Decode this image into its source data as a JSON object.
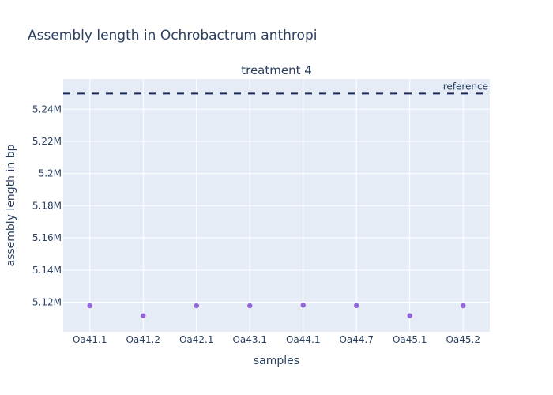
{
  "chart_data": {
    "type": "scatter",
    "title": "Assembly length in Ochrobactrum anthropi",
    "subtitle": "treatment 4",
    "xlabel": "samples",
    "ylabel": "assembly length in bp",
    "categories": [
      "Oa41.1",
      "Oa41.2",
      "Oa42.1",
      "Oa43.1",
      "Oa44.1",
      "Oa44.7",
      "Oa45.1",
      "Oa45.2"
    ],
    "values": [
      5117800,
      5111600,
      5117800,
      5117800,
      5118200,
      5117900,
      5111600,
      5117800
    ],
    "ylim": [
      5101600,
      5258800
    ],
    "yticks": [
      5120000,
      5140000,
      5160000,
      5180000,
      5200000,
      5220000,
      5240000
    ],
    "ytick_labels": [
      "5.12M",
      "5.14M",
      "5.16M",
      "5.18M",
      "5.2M",
      "5.22M",
      "5.24M"
    ],
    "reference": {
      "label": "reference",
      "value": 5249800,
      "color": "#1f2a5c"
    },
    "colors": {
      "point": "#9467d8",
      "plot_bg": "#e5ecf6",
      "grid": "#ffffff",
      "text": "#2a3f5f"
    },
    "grid": true
  }
}
